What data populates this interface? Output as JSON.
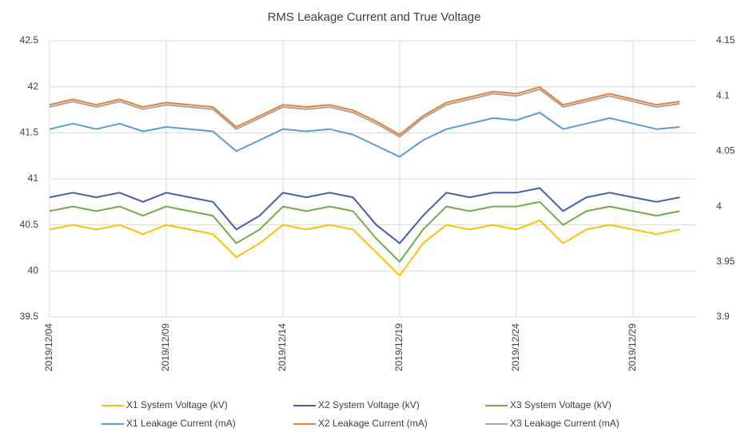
{
  "chart_data": {
    "type": "line",
    "title": "RMS Leakage Current and True Voltage",
    "x": [
      "2019/12/04",
      "2019/12/05",
      "2019/12/06",
      "2019/12/07",
      "2019/12/08",
      "2019/12/09",
      "2019/12/10",
      "2019/12/11",
      "2019/12/12",
      "2019/12/13",
      "2019/12/14",
      "2019/12/15",
      "2019/12/16",
      "2019/12/17",
      "2019/12/18",
      "2019/12/19",
      "2019/12/20",
      "2019/12/21",
      "2019/12/22",
      "2019/12/23",
      "2019/12/24",
      "2019/12/25",
      "2019/12/26",
      "2019/12/27",
      "2019/12/28",
      "2019/12/29",
      "2019/12/30",
      "2019/12/31"
    ],
    "xticks": [
      "2019/12/04",
      "2019/12/09",
      "2019/12/14",
      "2019/12/19",
      "2019/12/24",
      "2019/12/29"
    ],
    "ylim": [
      39.5,
      42.5
    ],
    "yticks": [
      39.5,
      40,
      40.5,
      41,
      41.5,
      42,
      42.5
    ],
    "y2lim": [
      3.9,
      4.15
    ],
    "y2ticks": [
      3.9,
      3.95,
      4,
      4.05,
      4.1,
      4.15
    ],
    "grid": true,
    "legend": "bottom",
    "series": [
      {
        "name": "X1 System Voltage (kV)",
        "color": "#FFC000",
        "values": [
          40.45,
          40.5,
          40.45,
          40.5,
          40.4,
          40.5,
          40.45,
          40.4,
          40.15,
          40.3,
          40.5,
          40.45,
          40.5,
          40.45,
          40.2,
          39.95,
          40.3,
          40.5,
          40.45,
          40.5,
          40.45,
          40.55,
          40.3,
          40.45,
          40.5,
          40.45,
          40.4,
          40.45
        ]
      },
      {
        "name": "X2 System Voltage (kV)",
        "color": "#3F5FB5",
        "values": [
          40.8,
          40.85,
          40.8,
          40.85,
          40.75,
          40.85,
          40.8,
          40.75,
          40.45,
          40.6,
          40.85,
          40.8,
          40.85,
          40.8,
          40.5,
          40.3,
          40.6,
          40.85,
          40.8,
          40.85,
          40.85,
          40.9,
          40.65,
          40.8,
          40.85,
          40.8,
          40.75,
          40.8
        ]
      },
      {
        "name": "X3 System Voltage (kV)",
        "color": "#70AD47",
        "values": [
          40.65,
          40.7,
          40.65,
          40.7,
          40.6,
          40.7,
          40.65,
          40.6,
          40.3,
          40.45,
          40.7,
          40.65,
          40.7,
          40.65,
          40.35,
          40.1,
          40.45,
          40.7,
          40.65,
          40.7,
          40.7,
          40.75,
          40.5,
          40.65,
          40.7,
          40.65,
          40.6,
          40.65
        ]
      },
      {
        "name": "X1 Leakage Current (mA)",
        "color": "#5B9BD5",
        "axis": "y2",
        "values": [
          4.07,
          4.075,
          4.07,
          4.075,
          4.068,
          4.072,
          4.07,
          4.068,
          4.05,
          4.06,
          4.07,
          4.068,
          4.07,
          4.065,
          4.055,
          4.045,
          4.06,
          4.07,
          4.075,
          4.08,
          4.078,
          4.085,
          4.07,
          4.075,
          4.08,
          4.075,
          4.07,
          4.072
        ]
      },
      {
        "name": "X2 Leakage Current (mA)",
        "color": "#ED7D31",
        "axis": "y2",
        "values": [
          4.092,
          4.097,
          4.092,
          4.097,
          4.09,
          4.094,
          4.092,
          4.09,
          4.072,
          4.082,
          4.092,
          4.09,
          4.092,
          4.087,
          4.077,
          4.065,
          4.082,
          4.094,
          4.099,
          4.104,
          4.102,
          4.108,
          4.092,
          4.097,
          4.102,
          4.097,
          4.092,
          4.095
        ]
      },
      {
        "name": "X3 Leakage Current (mA)",
        "color": "#A5A5A5",
        "axis": "y2",
        "values": [
          4.09,
          4.095,
          4.09,
          4.095,
          4.088,
          4.092,
          4.09,
          4.088,
          4.07,
          4.08,
          4.09,
          4.088,
          4.09,
          4.085,
          4.075,
          4.063,
          4.08,
          4.092,
          4.097,
          4.102,
          4.1,
          4.106,
          4.09,
          4.095,
          4.1,
          4.095,
          4.09,
          4.093
        ]
      }
    ]
  }
}
